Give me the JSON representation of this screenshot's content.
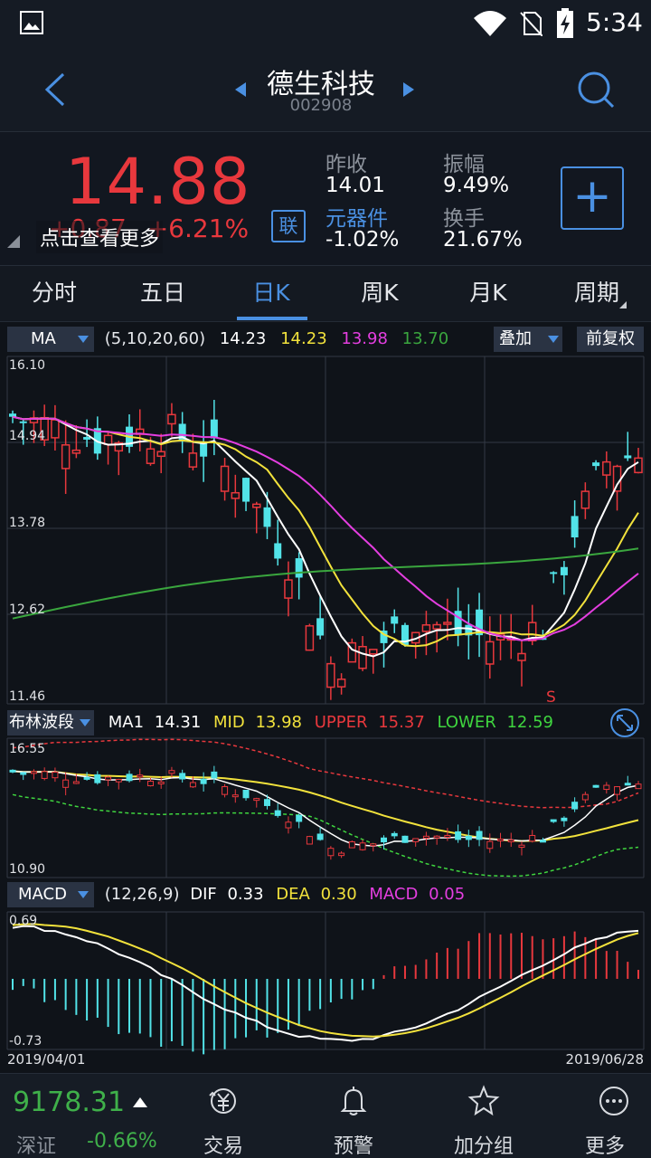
{
  "status": {
    "time": "5:34"
  },
  "header": {
    "stock_name": "德生科技",
    "stock_code": "002908"
  },
  "quote": {
    "price": "14.88",
    "change": "+0.87",
    "change_pct": "+6.21%",
    "overlay_hint": "点击查看更多",
    "link_badge": "联",
    "prev_close_label": "昨收",
    "prev_close": "14.01",
    "sector_label": "元器件",
    "sector_change": "-1.02%",
    "amplitude_label": "振幅",
    "amplitude": "9.49%",
    "turnover_label": "换手",
    "turnover": "21.67%",
    "add_label": "+"
  },
  "tabs": [
    {
      "label": "分时"
    },
    {
      "label": "五日"
    },
    {
      "label": "日K"
    },
    {
      "label": "周K"
    },
    {
      "label": "月K"
    },
    {
      "label": "周期"
    }
  ],
  "kline": {
    "indicator": "MA",
    "params": "(5,10,20,60)",
    "ma5": "14.23",
    "ma10": "14.23",
    "ma20": "13.98",
    "ma60": "13.70",
    "overlay_btn": "叠加",
    "adjust_btn": "前复权",
    "y_ticks": [
      "16.10",
      "14.94",
      "13.78",
      "12.62",
      "11.46"
    ],
    "marker": "S"
  },
  "boll": {
    "indicator": "布林波段",
    "ma1_label": "MA1",
    "ma1": "14.31",
    "mid_label": "MID",
    "mid": "13.98",
    "upper_label": "UPPER",
    "upper": "15.37",
    "lower_label": "LOWER",
    "lower": "12.59",
    "y_top": "16.55",
    "y_bottom": "10.90"
  },
  "macd": {
    "indicator": "MACD",
    "params": "(12,26,9)",
    "dif_label": "DIF",
    "dif": "0.33",
    "dea_label": "DEA",
    "dea": "0.30",
    "macd_label": "MACD",
    "macd": "0.05",
    "y_top": "0.69",
    "y_bottom": "-0.73",
    "date_start": "2019/04/01",
    "date_end": "2019/06/28"
  },
  "bottom": {
    "index_value": "9178.31",
    "index_name": "深证",
    "index_change": "-0.66%",
    "items": [
      {
        "label": "交易"
      },
      {
        "label": "预警"
      },
      {
        "label": "加分组"
      },
      {
        "label": "更多"
      }
    ]
  },
  "colors": {
    "up": "#e8383d",
    "down": "#52e3e8",
    "accent": "#4a90e2",
    "ma5": "#ffffff",
    "ma10": "#f2e23c",
    "ma20": "#e43ee0",
    "ma60": "#3aa63e"
  }
}
